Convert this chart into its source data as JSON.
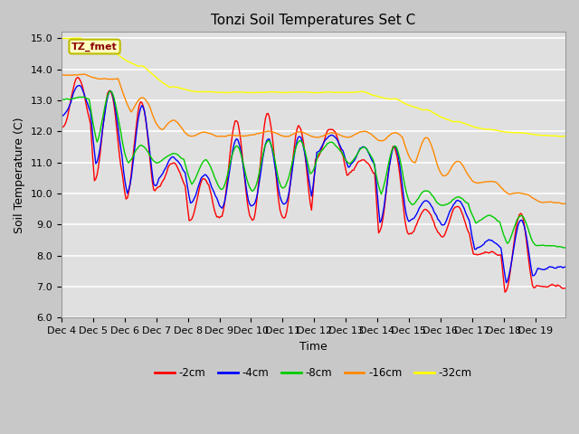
{
  "title": "Tonzi Soil Temperatures Set C",
  "xlabel": "Time",
  "ylabel": "Soil Temperature (C)",
  "ylim": [
    6.0,
    15.2
  ],
  "xtick_labels": [
    "Dec 4",
    "Dec 5",
    "Dec 6",
    "Dec 7",
    "Dec 8",
    "Dec 9",
    "Dec 10",
    "Dec 11",
    "Dec 12",
    "Dec 13",
    "Dec 14",
    "Dec 15",
    "Dec 16",
    "Dec 17",
    "Dec 18",
    "Dec 19"
  ],
  "legend_label": "TZ_fmet",
  "series_labels": [
    "-2cm",
    "-4cm",
    "-8cm",
    "-16cm",
    "-32cm"
  ],
  "series_colors": [
    "#ff0000",
    "#0000ff",
    "#00cc00",
    "#ff8800",
    "#ffff00"
  ],
  "yticks": [
    6.0,
    7.0,
    8.0,
    9.0,
    10.0,
    11.0,
    12.0,
    13.0,
    14.0,
    15.0
  ],
  "title_fontsize": 11,
  "axis_fontsize": 9,
  "tick_fontsize": 8,
  "fig_facecolor": "#c8c8c8",
  "ax_facecolor": "#e0e0e0"
}
